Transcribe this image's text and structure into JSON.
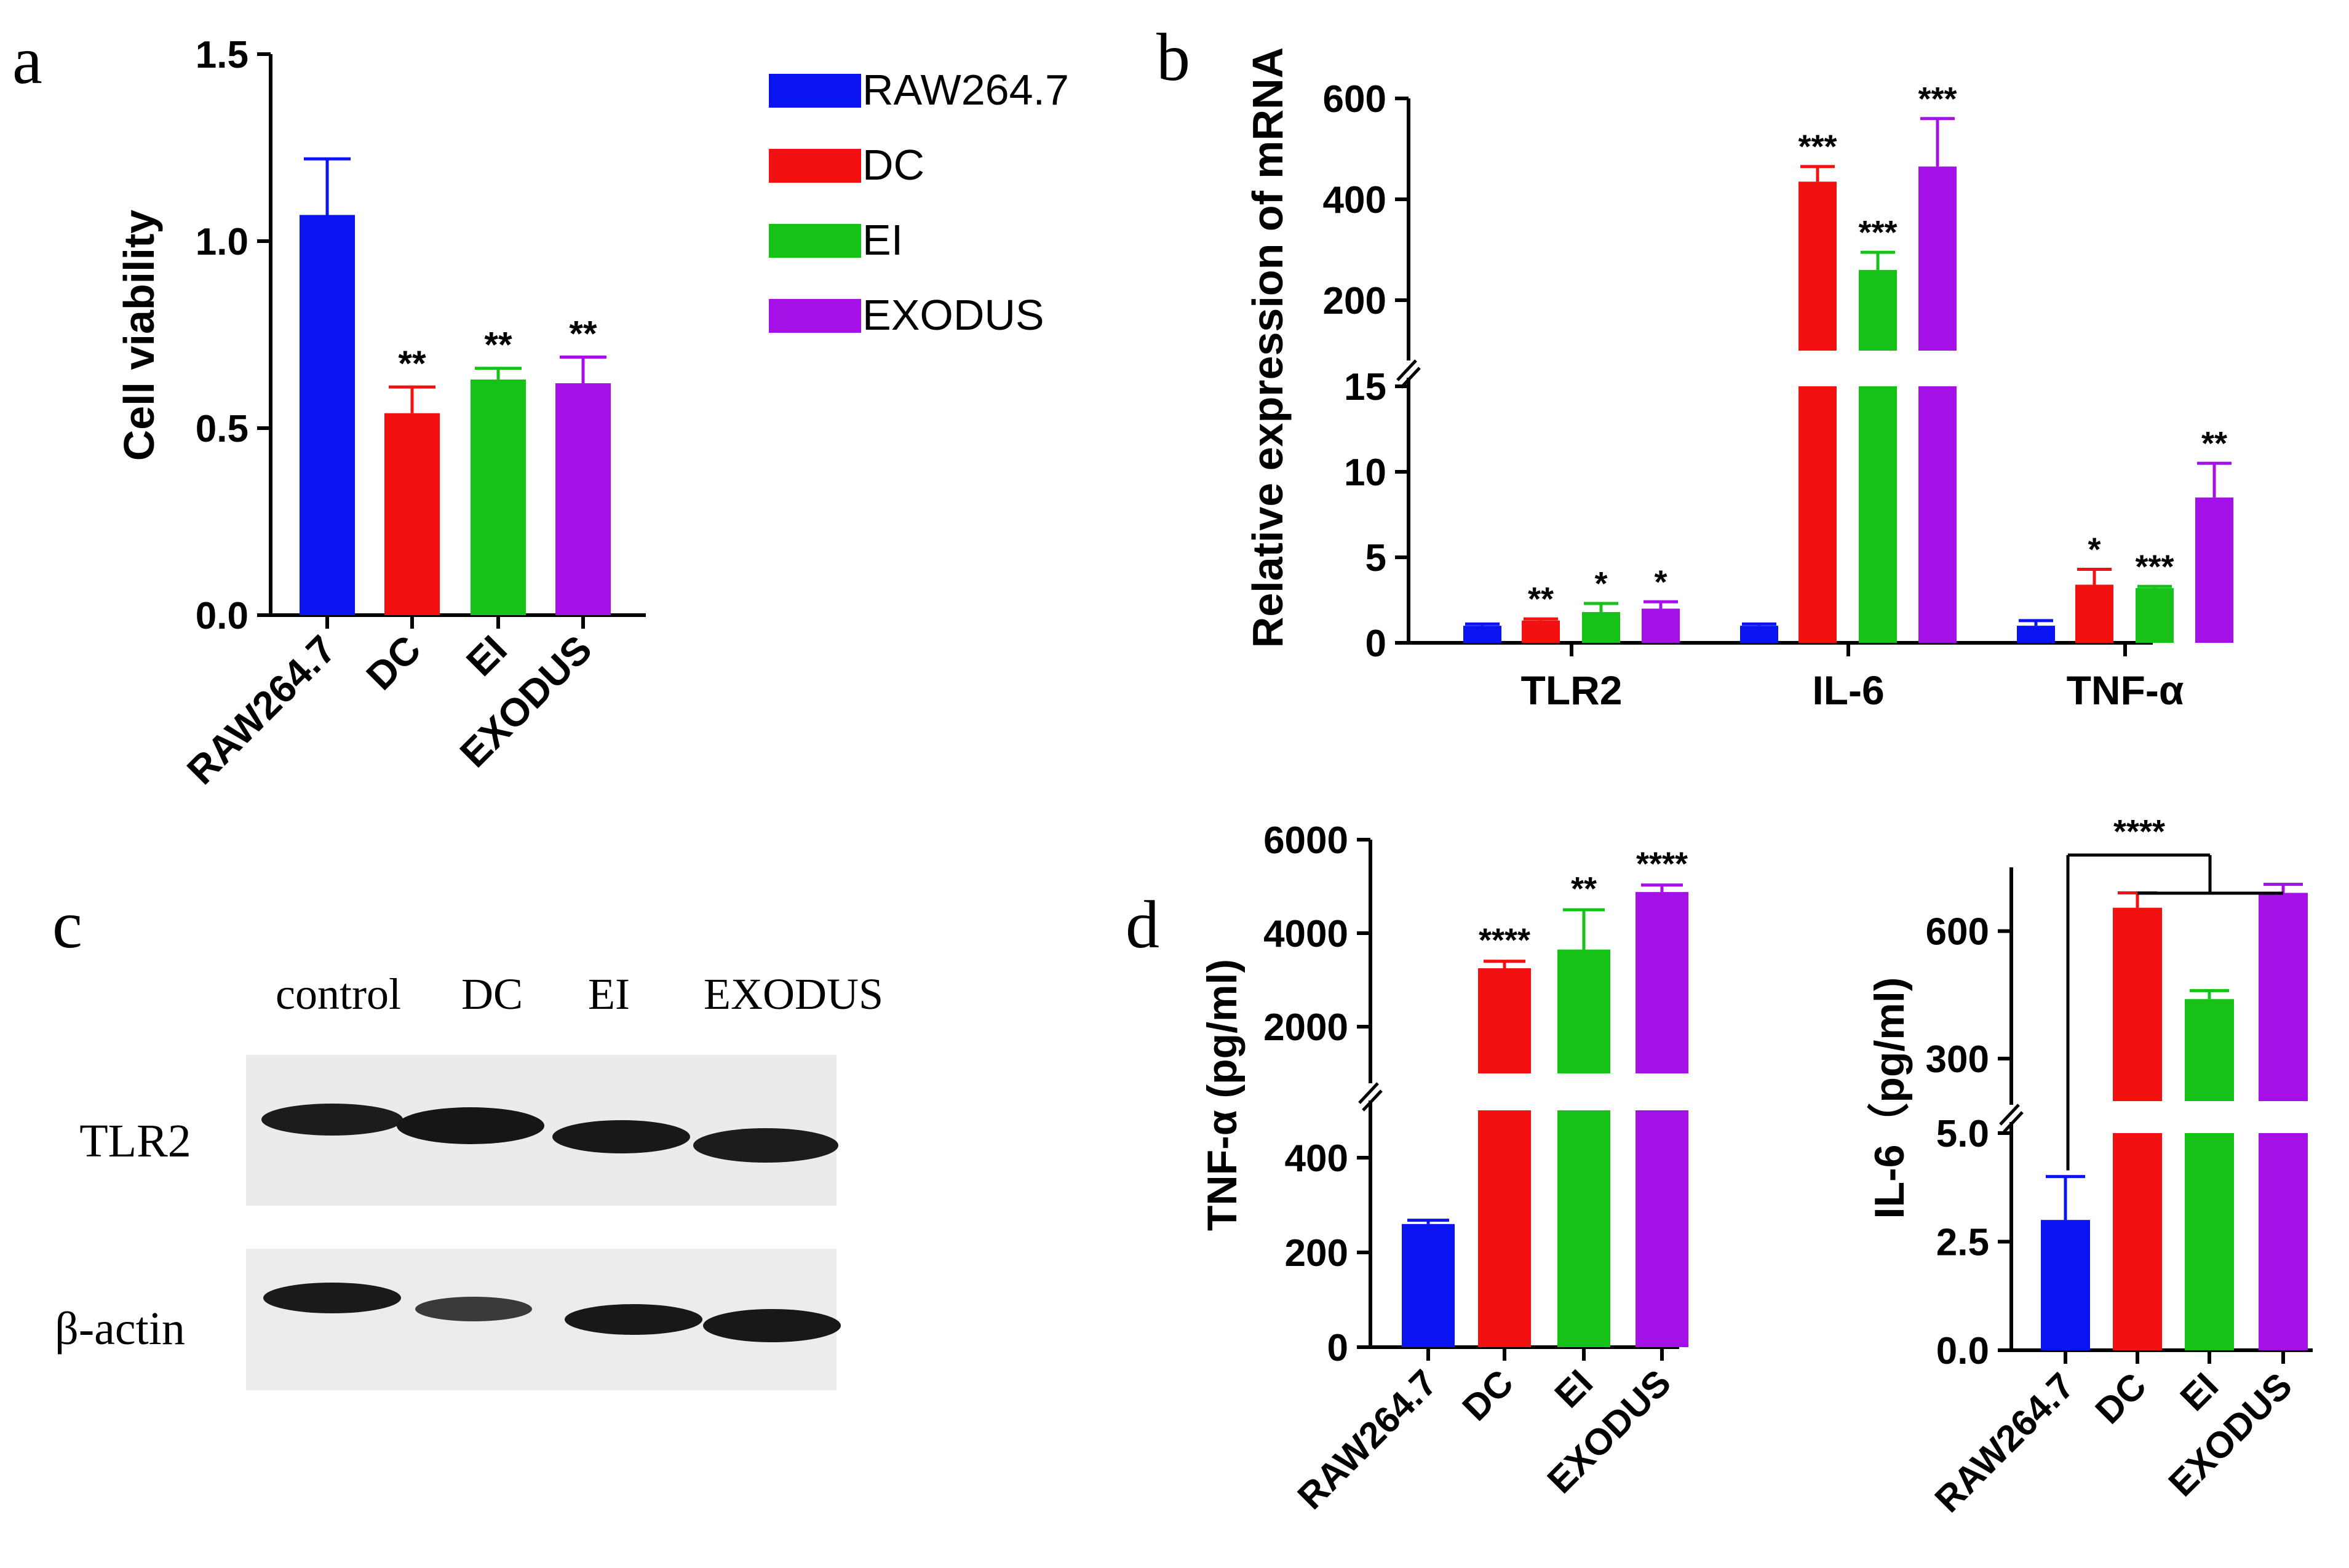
{
  "panel_labels": {
    "a": "a",
    "b": "b",
    "c": "c",
    "d": "d"
  },
  "colors": {
    "RAW264.7": "#0a14f0",
    "DC": "#f21010",
    "EI": "#16c218",
    "EXODUS": "#a410e6"
  },
  "legend": [
    "RAW264.7",
    "DC",
    "EI",
    "EXODUS"
  ],
  "chart_data": [
    {
      "id": "a",
      "type": "bar",
      "categories": [
        "RAW264.7",
        "DC",
        "EI",
        "EXODUS"
      ],
      "values": [
        1.07,
        0.54,
        0.63,
        0.62
      ],
      "errors": [
        0.15,
        0.07,
        0.03,
        0.07
      ],
      "significance": [
        "",
        "**",
        "**",
        "**"
      ],
      "ylabel": "Cell viability",
      "ylim": [
        0,
        1.5
      ],
      "yticks": [
        "0.0",
        "0.5",
        "1.0",
        "1.5"
      ]
    },
    {
      "id": "b",
      "type": "bar",
      "categories": [
        "TLR2",
        "IL-6",
        "TNF-α"
      ],
      "series": [
        {
          "name": "RAW264.7",
          "values": [
            1.0,
            1.0,
            1.0
          ],
          "errors": [
            0.1,
            0.1,
            0.3
          ],
          "significance": [
            "",
            "",
            ""
          ]
        },
        {
          "name": "DC",
          "values": [
            1.3,
            435,
            3.4
          ],
          "errors": [
            0.1,
            30,
            0.9
          ],
          "significance": [
            "**",
            "***",
            "*"
          ]
        },
        {
          "name": "EI",
          "values": [
            1.8,
            260,
            3.2
          ],
          "errors": [
            0.5,
            35,
            0.1
          ],
          "significance": [
            "*",
            "***",
            "***"
          ]
        },
        {
          "name": "EXODUS",
          "values": [
            2.0,
            465,
            8.5
          ],
          "errors": [
            0.4,
            95,
            2.0
          ],
          "significance": [
            "*",
            "***",
            "**"
          ]
        }
      ],
      "ylabel": "Relative expression of mRNA",
      "axis_break": {
        "lower": [
          0,
          15
        ],
        "upper": [
          100,
          600
        ]
      },
      "yticks_lower": [
        "0",
        "5",
        "10",
        "15"
      ],
      "yticks_upper": [
        "200",
        "400",
        "600"
      ]
    },
    {
      "id": "c",
      "type": "table",
      "columns": [
        "control",
        "DC",
        "EI",
        "EXODUS"
      ],
      "rows": [
        "TLR2",
        "β-actin"
      ]
    },
    {
      "id": "d1",
      "type": "bar",
      "categories": [
        "RAW264.7",
        "DC",
        "EI",
        "EXODUS"
      ],
      "values": [
        260,
        3250,
        3650,
        4880
      ],
      "errors": [
        8,
        150,
        850,
        150
      ],
      "significance": [
        "",
        "****",
        "**",
        "****"
      ],
      "ylabel": "TNF-α (pg/ml)",
      "axis_break": {
        "lower": [
          0,
          500
        ],
        "upper": [
          1000,
          6000
        ]
      },
      "yticks_lower": [
        "0",
        "200",
        "400"
      ],
      "yticks_upper": [
        "2000",
        "4000",
        "6000"
      ]
    },
    {
      "id": "d2",
      "type": "bar",
      "categories": [
        "RAW264.7",
        "DC",
        "EI",
        "EXODUS"
      ],
      "values": [
        3.0,
        655,
        440,
        690
      ],
      "errors": [
        1.0,
        35,
        20,
        20
      ],
      "significance_bracket": "****",
      "ylabel": "IL-6（pg/ml)",
      "axis_break": {
        "lower": [
          0,
          5
        ],
        "upper": [
          200,
          750
        ]
      },
      "yticks_lower": [
        "0.0",
        "2.5",
        "5.0"
      ],
      "yticks_upper": [
        "300",
        "600"
      ]
    }
  ]
}
